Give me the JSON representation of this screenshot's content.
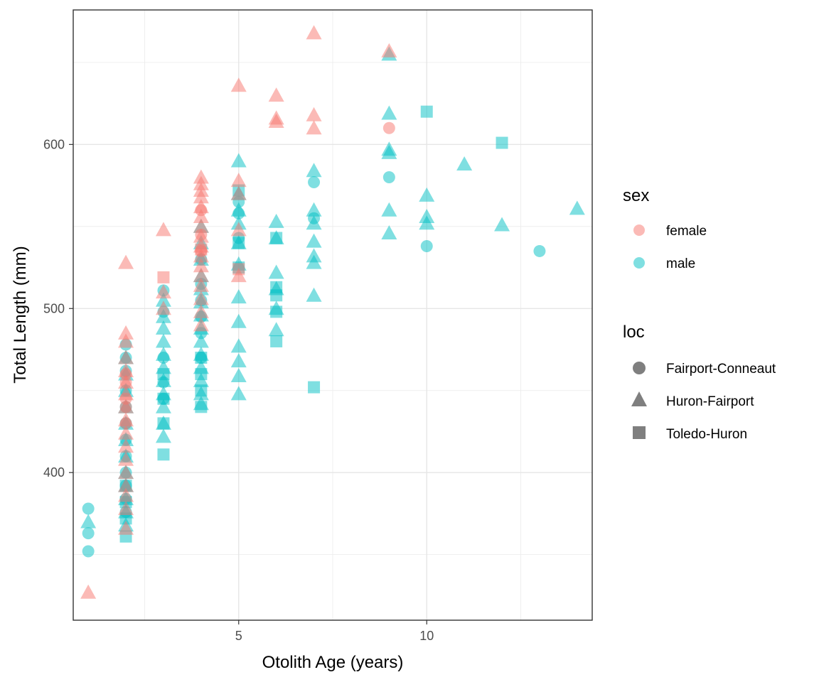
{
  "chart_data": {
    "type": "scatter",
    "xlabel": "Otolith Age (years)",
    "ylabel": "Total Length (mm)",
    "xlim": [
      0.6,
      14.4
    ],
    "ylim": [
      310,
      682
    ],
    "x_ticks": [
      5,
      10
    ],
    "y_ticks": [
      400,
      500,
      600
    ],
    "x_tick_labels": [
      "5",
      "10"
    ],
    "y_tick_labels": [
      "400",
      "500",
      "600"
    ],
    "grid": true,
    "legend_placement": "right",
    "colors": {
      "female": "#F8766D",
      "male": "#00BFC4",
      "shape_key": "#7f7f7f"
    },
    "legends": [
      {
        "title": "sex",
        "type": "color",
        "items": [
          {
            "label": "female",
            "key": "female"
          },
          {
            "label": "male",
            "key": "male"
          }
        ]
      },
      {
        "title": "loc",
        "type": "shape",
        "items": [
          {
            "label": "Fairport-Conneaut",
            "shape": "circle"
          },
          {
            "label": "Huron-Fairport",
            "shape": "triangle"
          },
          {
            "label": "Toledo-Huron",
            "shape": "square"
          }
        ]
      }
    ],
    "series": [
      {
        "sex": "female",
        "loc": "Fairport-Conneaut",
        "points": [
          [
            2,
            445
          ],
          [
            2,
            455
          ],
          [
            2,
            460
          ],
          [
            2,
            440
          ],
          [
            2,
            430
          ],
          [
            4,
            560
          ],
          [
            4,
            545
          ],
          [
            4,
            535
          ],
          [
            9,
            610
          ]
        ]
      },
      {
        "sex": "female",
        "loc": "Huron-Fairport",
        "points": [
          [
            1,
            327
          ],
          [
            2,
            528
          ],
          [
            2,
            485
          ],
          [
            2,
            480
          ],
          [
            2,
            470
          ],
          [
            2,
            462
          ],
          [
            2,
            455
          ],
          [
            2,
            448
          ],
          [
            2,
            440
          ],
          [
            2,
            432
          ],
          [
            2,
            424
          ],
          [
            2,
            416
          ],
          [
            2,
            408
          ],
          [
            2,
            400
          ],
          [
            2,
            392
          ],
          [
            2,
            386
          ],
          [
            2,
            378
          ],
          [
            2,
            366
          ],
          [
            3,
            548
          ],
          [
            3,
            510
          ],
          [
            3,
            500
          ],
          [
            4,
            580
          ],
          [
            4,
            576
          ],
          [
            4,
            572
          ],
          [
            4,
            568
          ],
          [
            4,
            562
          ],
          [
            4,
            556
          ],
          [
            4,
            550
          ],
          [
            4,
            544
          ],
          [
            4,
            538
          ],
          [
            4,
            532
          ],
          [
            4,
            526
          ],
          [
            4,
            520
          ],
          [
            4,
            514
          ],
          [
            4,
            506
          ],
          [
            4,
            498
          ],
          [
            4,
            490
          ],
          [
            5,
            636
          ],
          [
            5,
            578
          ],
          [
            5,
            570
          ],
          [
            5,
            548
          ],
          [
            5,
            520
          ],
          [
            6,
            630
          ],
          [
            6,
            616
          ],
          [
            6,
            614
          ],
          [
            7,
            668
          ],
          [
            7,
            618
          ],
          [
            7,
            610
          ],
          [
            9,
            657
          ]
        ]
      },
      {
        "sex": "female",
        "loc": "Toledo-Huron",
        "points": [
          [
            3,
            519
          ],
          [
            4,
            536
          ],
          [
            5,
            524
          ]
        ]
      },
      {
        "sex": "male",
        "loc": "Fairport-Conneaut",
        "points": [
          [
            1,
            378
          ],
          [
            1,
            363
          ],
          [
            1,
            352
          ],
          [
            2,
            478
          ],
          [
            2,
            470
          ],
          [
            2,
            462
          ],
          [
            2,
            450
          ],
          [
            2,
            440
          ],
          [
            2,
            430
          ],
          [
            2,
            420
          ],
          [
            2,
            410
          ],
          [
            2,
            400
          ],
          [
            2,
            392
          ],
          [
            2,
            384
          ],
          [
            2,
            376
          ],
          [
            3,
            511
          ],
          [
            3,
            498
          ],
          [
            3,
            470
          ],
          [
            3,
            455
          ],
          [
            3,
            445
          ],
          [
            4,
            530
          ],
          [
            4,
            515
          ],
          [
            4,
            505
          ],
          [
            4,
            495
          ],
          [
            4,
            485
          ],
          [
            4,
            470
          ],
          [
            5,
            565
          ],
          [
            5,
            558
          ],
          [
            5,
            543
          ],
          [
            7,
            577
          ],
          [
            7,
            555
          ],
          [
            9,
            580
          ],
          [
            10,
            538
          ],
          [
            13,
            535
          ]
        ]
      },
      {
        "sex": "male",
        "loc": "Huron-Fairport",
        "points": [
          [
            1,
            370
          ],
          [
            2,
            470
          ],
          [
            2,
            460
          ],
          [
            2,
            450
          ],
          [
            2,
            440
          ],
          [
            2,
            430
          ],
          [
            2,
            420
          ],
          [
            2,
            410
          ],
          [
            2,
            400
          ],
          [
            2,
            392
          ],
          [
            2,
            384
          ],
          [
            2,
            376
          ],
          [
            2,
            368
          ],
          [
            3,
            505
          ],
          [
            3,
            495
          ],
          [
            3,
            488
          ],
          [
            3,
            480
          ],
          [
            3,
            472
          ],
          [
            3,
            464
          ],
          [
            3,
            456
          ],
          [
            3,
            448
          ],
          [
            3,
            440
          ],
          [
            3,
            430
          ],
          [
            3,
            422
          ],
          [
            4,
            550
          ],
          [
            4,
            540
          ],
          [
            4,
            530
          ],
          [
            4,
            520
          ],
          [
            4,
            512
          ],
          [
            4,
            504
          ],
          [
            4,
            496
          ],
          [
            4,
            488
          ],
          [
            4,
            480
          ],
          [
            4,
            472
          ],
          [
            4,
            464
          ],
          [
            4,
            456
          ],
          [
            4,
            448
          ],
          [
            4,
            442
          ],
          [
            5,
            590
          ],
          [
            5,
            570
          ],
          [
            5,
            560
          ],
          [
            5,
            552
          ],
          [
            5,
            540
          ],
          [
            5,
            527
          ],
          [
            5,
            507
          ],
          [
            5,
            492
          ],
          [
            5,
            477
          ],
          [
            5,
            468
          ],
          [
            5,
            459
          ],
          [
            5,
            448
          ],
          [
            6,
            553
          ],
          [
            6,
            543
          ],
          [
            6,
            522
          ],
          [
            6,
            512
          ],
          [
            6,
            500
          ],
          [
            6,
            487
          ],
          [
            7,
            584
          ],
          [
            7,
            560
          ],
          [
            7,
            552
          ],
          [
            7,
            541
          ],
          [
            7,
            532
          ],
          [
            7,
            528
          ],
          [
            7,
            508
          ],
          [
            9,
            655
          ],
          [
            9,
            619
          ],
          [
            9,
            597
          ],
          [
            9,
            595
          ],
          [
            9,
            560
          ],
          [
            9,
            546
          ],
          [
            10,
            569
          ],
          [
            10,
            556
          ],
          [
            10,
            552
          ],
          [
            11,
            588
          ],
          [
            12,
            551
          ],
          [
            14,
            561
          ]
        ]
      },
      {
        "sex": "male",
        "loc": "Toledo-Huron",
        "points": [
          [
            2,
            361
          ],
          [
            2,
            372
          ],
          [
            2,
            382
          ],
          [
            2,
            392
          ],
          [
            3,
            411
          ],
          [
            3,
            430
          ],
          [
            3,
            445
          ],
          [
            3,
            460
          ],
          [
            4,
            440
          ],
          [
            4,
            450
          ],
          [
            4,
            460
          ],
          [
            4,
            470
          ],
          [
            5,
            572
          ],
          [
            5,
            540
          ],
          [
            5,
            525
          ],
          [
            6,
            543
          ],
          [
            6,
            513
          ],
          [
            6,
            508
          ],
          [
            6,
            498
          ],
          [
            6,
            480
          ],
          [
            7,
            452
          ],
          [
            10,
            620
          ],
          [
            12,
            601
          ]
        ]
      }
    ]
  }
}
